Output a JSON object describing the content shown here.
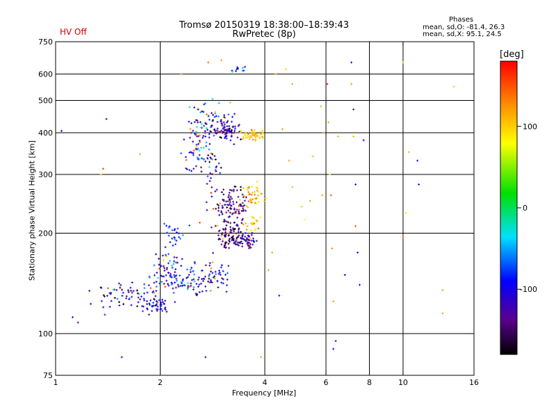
{
  "header": {
    "title_line1": "Tromsø 20150319 18:38:00–18:39:43",
    "title_line2": "RwPretec (8p)",
    "hv_status": "HV Off",
    "hv_color": "#d00000",
    "stats_heading": "Phases",
    "stats_line1": "mean, sd,O: -81.4, 26.3",
    "stats_line2": "mean, sd,X:  95.1, 24.5"
  },
  "chart_data": {
    "type": "scatter",
    "xlabel": "Frequency [MHz]",
    "ylabel": "Stationary phase Virtual Height [km]",
    "x_scale": "log",
    "y_scale": "log",
    "xlim": [
      1,
      16
    ],
    "ylim": [
      75,
      750
    ],
    "x_ticks": [
      1,
      2,
      4,
      6,
      8,
      10,
      16
    ],
    "y_ticks": [
      75,
      100,
      200,
      300,
      400,
      500,
      600,
      750
    ],
    "x_grid": [
      2,
      4,
      6,
      8,
      10
    ],
    "y_grid": [
      100,
      200,
      300,
      400,
      500,
      600
    ],
    "grid": true,
    "colorbar": {
      "label": "[deg]",
      "range": [
        -180,
        180
      ],
      "ticks": [
        -100,
        0,
        100
      ],
      "colormap": "rainbow"
    },
    "clusters": [
      {
        "x": 1.55,
        "y": 130,
        "dx": 0.1,
        "dy": 0.05,
        "n": 60,
        "phase": -115,
        "ps": 40
      },
      {
        "x": 1.95,
        "y": 122,
        "dx": 0.05,
        "dy": 0.03,
        "n": 50,
        "phase": -100,
        "ps": 20
      },
      {
        "x": 2.1,
        "y": 150,
        "dx": 0.06,
        "dy": 0.08,
        "n": 70,
        "phase": -95,
        "ps": 30
      },
      {
        "x": 2.2,
        "y": 195,
        "dx": 0.04,
        "dy": 0.05,
        "n": 25,
        "phase": -95,
        "ps": 25
      },
      {
        "x": 2.5,
        "y": 145,
        "dx": 0.08,
        "dy": 0.06,
        "n": 70,
        "phase": -100,
        "ps": 35
      },
      {
        "x": 2.6,
        "y": 370,
        "dx": 0.05,
        "dy": 0.1,
        "n": 80,
        "phase": -100,
        "ps": 40
      },
      {
        "x": 2.85,
        "y": 300,
        "dx": 0.04,
        "dy": 0.12,
        "n": 30,
        "phase": -110,
        "ps": 40
      },
      {
        "x": 3.05,
        "y": 410,
        "dx": 0.05,
        "dy": 0.04,
        "n": 90,
        "phase": -125,
        "ps": 25
      },
      {
        "x": 3.2,
        "y": 240,
        "dx": 0.05,
        "dy": 0.07,
        "n": 110,
        "phase": -140,
        "ps": 20
      },
      {
        "x": 3.2,
        "y": 195,
        "dx": 0.05,
        "dy": 0.04,
        "n": 90,
        "phase": -145,
        "ps": 20
      },
      {
        "x": 3.6,
        "y": 190,
        "dx": 0.03,
        "dy": 0.03,
        "n": 40,
        "phase": -125,
        "ps": 20
      },
      {
        "x": 3.7,
        "y": 395,
        "dx": 0.04,
        "dy": 0.02,
        "n": 55,
        "phase": 100,
        "ps": 20
      },
      {
        "x": 3.7,
        "y": 260,
        "dx": 0.03,
        "dy": 0.05,
        "n": 40,
        "phase": 100,
        "ps": 25
      },
      {
        "x": 3.7,
        "y": 215,
        "dx": 0.03,
        "dy": 0.03,
        "n": 20,
        "phase": 110,
        "ps": 25
      },
      {
        "x": 2.9,
        "y": 150,
        "dx": 0.06,
        "dy": 0.06,
        "n": 35,
        "phase": -110,
        "ps": 30
      },
      {
        "x": 3.4,
        "y": 620,
        "dx": 0.04,
        "dy": 0.01,
        "n": 12,
        "phase": -80,
        "ps": 30
      },
      {
        "x": 2.8,
        "y": 460,
        "dx": 0.06,
        "dy": 0.07,
        "n": 25,
        "phase": -100,
        "ps": 60
      }
    ],
    "points": [
      [
        1.04,
        405,
        -110
      ],
      [
        1.12,
        112,
        -120
      ],
      [
        1.16,
        108,
        -140
      ],
      [
        1.35,
        300,
        110
      ],
      [
        1.37,
        312,
        160
      ],
      [
        1.4,
        440,
        -90
      ],
      [
        1.55,
        85,
        -90
      ],
      [
        1.75,
        345,
        120
      ],
      [
        2.3,
        600,
        130
      ],
      [
        2.45,
        350,
        -90
      ],
      [
        2.6,
        215,
        150
      ],
      [
        2.7,
        85,
        -120
      ],
      [
        2.75,
        650,
        140
      ],
      [
        3.0,
        660,
        120
      ],
      [
        3.05,
        430,
        -100
      ],
      [
        3.9,
        85,
        120
      ],
      [
        4.1,
        155,
        120
      ],
      [
        4.2,
        175,
        120
      ],
      [
        4.3,
        600,
        130
      ],
      [
        4.4,
        130,
        -100
      ],
      [
        4.5,
        410,
        120
      ],
      [
        4.6,
        620,
        100
      ],
      [
        4.7,
        330,
        120
      ],
      [
        4.8,
        275,
        110
      ],
      [
        4.8,
        560,
        120
      ],
      [
        5.1,
        240,
        100
      ],
      [
        5.2,
        220,
        80
      ],
      [
        5.4,
        250,
        120
      ],
      [
        5.5,
        340,
        110
      ],
      [
        5.8,
        480,
        110
      ],
      [
        5.85,
        260,
        120
      ],
      [
        5.9,
        400,
        130
      ],
      [
        6.05,
        560,
        180
      ],
      [
        6.1,
        430,
        120
      ],
      [
        6.15,
        300,
        100
      ],
      [
        6.2,
        260,
        150
      ],
      [
        6.25,
        180,
        130
      ],
      [
        6.3,
        125,
        120
      ],
      [
        6.3,
        90,
        -100
      ],
      [
        6.4,
        95,
        -100
      ],
      [
        6.5,
        390,
        50
      ],
      [
        6.8,
        150,
        -100
      ],
      [
        7.1,
        650,
        -110
      ],
      [
        7.1,
        560,
        120
      ],
      [
        7.2,
        470,
        -90
      ],
      [
        7.2,
        390,
        110
      ],
      [
        7.3,
        280,
        -110
      ],
      [
        7.3,
        210,
        150
      ],
      [
        7.4,
        175,
        -90
      ],
      [
        7.5,
        140,
        -100
      ],
      [
        7.7,
        380,
        -100
      ],
      [
        10.0,
        650,
        100
      ],
      [
        10.0,
        195,
        150
      ],
      [
        10.2,
        230,
        90
      ],
      [
        10.4,
        350,
        110
      ],
      [
        11.0,
        330,
        -110
      ],
      [
        11.1,
        280,
        -90
      ],
      [
        13.0,
        135,
        120
      ],
      [
        13.0,
        115,
        120
      ],
      [
        14.0,
        550,
        100
      ]
    ]
  }
}
